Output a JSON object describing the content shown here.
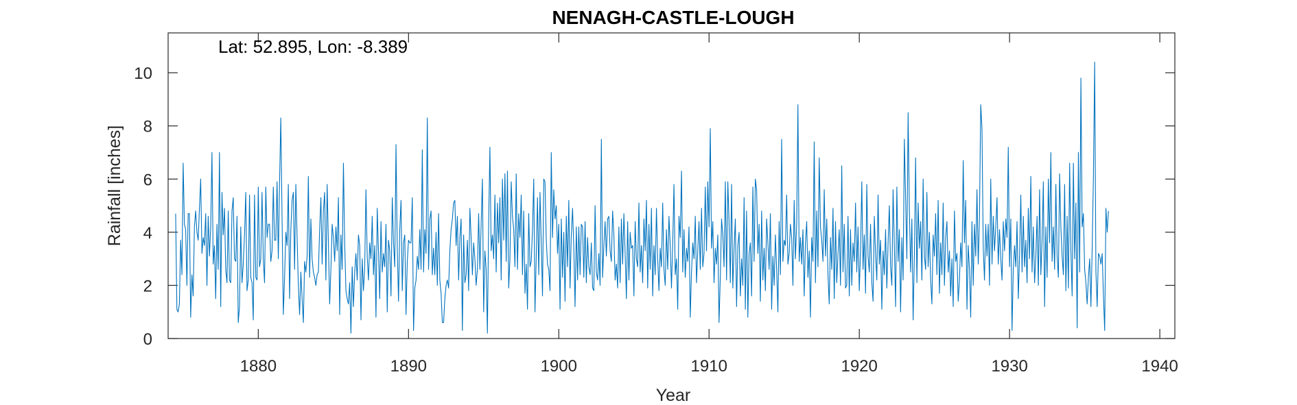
{
  "chart_data": {
    "type": "line",
    "title": "NENAGH-CASTLE-LOUGH",
    "annotation": "Lat: 52.895, Lon: -8.389",
    "xlabel": "Year",
    "ylabel": "Rainfall [inches]",
    "xlim": [
      1874.0,
      1941.0
    ],
    "ylim": [
      0,
      11.5
    ],
    "xticks": [
      1880,
      1890,
      1900,
      1910,
      1920,
      1930,
      1940
    ],
    "yticks": [
      0,
      2,
      4,
      6,
      8,
      10
    ],
    "grid": false,
    "line_color": "#0072BD",
    "series": [
      {
        "x_start": 1874.5,
        "x_step": 0.08333,
        "values": [
          4.7,
          1.1,
          1.0,
          1.3,
          3.7,
          2.4,
          6.6,
          4.3,
          4.1,
          2.0,
          4.7,
          4.7,
          0.8,
          2.4,
          1.6,
          4.2,
          4.8,
          4.0,
          3.7,
          4.9,
          6.0,
          3.2,
          3.8,
          3.5,
          4.7,
          2.0,
          4.6,
          3.1,
          4.2,
          7.0,
          2.8,
          3.5,
          1.5,
          4.3,
          2.6,
          7.0,
          1.2,
          5.5,
          3.9,
          4.9,
          2.6,
          2.1,
          4.8,
          2.2,
          2.1,
          4.8,
          5.3,
          3.0,
          2.9,
          4.6,
          0.6,
          1.2,
          4.2,
          2.1,
          2.8,
          3.9,
          5.5,
          1.8,
          2.2,
          5.4,
          2.3,
          2.1,
          0.7,
          5.4,
          2.3,
          2.2,
          5.7,
          2.7,
          3.0,
          5.5,
          3.0,
          2.1,
          5.7,
          3.8,
          4.3,
          4.3,
          2.9,
          3.3,
          5.7,
          3.7,
          3.7,
          5.9,
          3.0,
          5.9,
          8.3,
          4.5,
          0.9,
          2.3,
          4.0,
          3.5,
          5.8,
          1.5,
          4.1,
          5.2,
          5.5,
          2.6,
          5.8,
          3.8,
          2.0,
          0.9,
          2.5,
          1.5,
          0.6,
          2.9,
          2.5,
          3.1,
          6.1,
          2.3,
          4.5,
          3.0,
          2.5,
          2.3,
          2.0,
          2.4,
          2.5,
          4.1,
          5.3,
          2.8,
          4.8,
          5.5,
          2.2,
          5.8,
          3.6,
          1.3,
          2.6,
          4.3,
          3.8,
          2.9,
          4.2,
          3.3,
          5.3,
          0.9,
          3.9,
          2.6,
          6.6,
          3.6,
          1.8,
          1.5,
          1.3,
          2.1,
          0.2,
          2.7,
          1.2,
          2.5,
          3.2,
          2.2,
          3.9,
          3.5,
          0.7,
          3.0,
          1.8,
          2.7,
          5.6,
          3.1,
          2.2,
          3.6,
          3.0,
          4.6,
          2.4,
          3.5,
          0.8,
          4.9,
          3.3,
          1.5,
          4.4,
          2.5,
          3.2,
          2.7,
          4.3,
          1.0,
          3.7,
          3.3,
          1.6,
          5.3,
          3.6,
          2.7,
          7.3,
          3.4,
          1.4,
          4.1,
          5.2,
          1.8,
          3.6,
          3.9,
          0.9,
          2.9,
          3.7,
          3.6,
          3.6,
          5.3,
          0.3,
          1.9,
          2.2,
          3.1,
          2.6,
          4.1,
          2.6,
          7.1,
          2.5,
          4.1,
          3.2,
          8.3,
          2.6,
          4.5,
          4.8,
          2.4,
          3.4,
          2.4,
          4.0,
          2.0,
          4.7,
          2.2,
          1.7,
          0.6,
          0.6,
          1.5,
          2.0,
          2.2,
          1.9,
          3.3,
          4.1,
          4.5,
          5.1,
          5.2,
          3.5,
          4.6,
          2.2,
          3.8,
          4.5,
          0.3,
          3.9,
          2.1,
          2.4,
          3.7,
          1.8,
          4.9,
          3.8,
          2.4,
          3.6,
          3.0,
          2.0,
          2.6,
          4.7,
          2.6,
          4.3,
          6.0,
          1.0,
          3.3,
          2.6,
          0.2,
          4.4,
          7.2,
          3.3,
          3.9,
          3.0,
          5.4,
          2.5,
          5.1,
          3.6,
          5.3,
          2.2,
          6.0,
          3.7,
          6.2,
          2.9,
          6.3,
          1.9,
          3.0,
          5.9,
          4.6,
          4.1,
          2.7,
          6.2,
          2.6,
          4.7,
          3.8,
          5.4,
          2.4,
          4.8,
          1.7,
          2.8,
          1.1,
          4.7,
          2.7,
          2.9,
          4.1,
          6.0,
          1.0,
          3.1,
          5.3,
          2.4,
          5.5,
          3.6,
          1.6,
          6.0,
          5.9,
          3.7,
          2.8,
          2.6,
          1.8,
          7.0,
          3.8,
          5.6,
          4.5,
          5.0,
          3.2,
          4.3,
          1.1,
          4.5,
          2.3,
          4.0,
          1.4,
          4.6,
          2.7,
          5.2,
          1.9,
          3.9,
          4.9,
          3.4,
          1.2,
          4.2,
          2.2,
          4.2,
          2.4,
          4.3,
          4.2,
          2.3,
          4.4,
          2.1,
          3.8,
          2.7,
          2.4,
          3.6,
          1.9,
          1.8,
          5.0,
          2.5,
          2.2,
          3.2,
          2.0,
          7.5,
          2.3,
          3.5,
          4.4,
          3.1,
          4.5,
          4.6,
          3.3,
          2.9,
          4.8,
          3.9,
          2.2,
          2.8,
          1.9,
          4.2,
          2.1,
          4.5,
          2.8,
          4.7,
          3.2,
          1.5,
          4.4,
          2.2,
          4.0,
          3.4,
          3.5,
          1.6,
          4.4,
          3.0,
          2.7,
          5.1,
          2.5,
          3.5,
          2.1,
          4.5,
          3.3,
          5.2,
          1.9,
          4.3,
          2.6,
          4.9,
          1.6,
          3.5,
          2.4,
          4.9,
          3.0,
          1.8,
          3.4,
          2.7,
          5.1,
          2.6,
          2.0,
          4.1,
          2.6,
          4.6,
          3.5,
          1.9,
          3.6,
          5.8,
          2.4,
          3.0,
          1.1,
          4.6,
          3.8,
          6.3,
          2.5,
          4.1,
          2.3,
          3.4,
          2.9,
          4.2,
          0.8,
          2.5,
          3.6,
          3.0,
          4.6,
          2.1,
          3.3,
          4.4,
          2.6,
          4.9,
          2.7,
          3.2,
          5.7,
          3.3,
          5.9,
          4.2,
          7.9,
          3.4,
          4.4,
          2.1,
          3.4,
          2.8,
          3.9,
          0.6,
          2.3,
          4.5,
          3.9,
          2.7,
          5.9,
          2.2,
          5.9,
          4.4,
          2.1,
          5.8,
          1.9,
          3.4,
          4.5,
          1.2,
          3.5,
          4.0,
          1.6,
          3.0,
          2.0,
          5.3,
          1.1,
          4.8,
          0.8,
          3.2,
          3.6,
          1.6,
          5.7,
          2.9,
          6.0,
          5.6,
          3.2,
          4.3,
          1.4,
          4.8,
          2.2,
          3.4,
          1.8,
          4.5,
          3.6,
          2.6,
          4.7,
          1.1,
          3.1,
          2.0,
          3.9,
          2.6,
          1.0,
          4.4,
          2.4,
          7.5,
          2.9,
          3.7,
          3.5,
          5.4,
          2.8,
          3.2,
          4.3,
          3.8,
          2.0,
          5.2,
          3.0,
          4.3,
          8.8,
          2.9,
          3.8,
          2.8,
          4.1,
          1.6,
          3.6,
          4.4,
          2.3,
          3.3,
          0.8,
          3.8,
          2.9,
          7.4,
          2.1,
          4.8,
          2.7,
          6.8,
          4.2,
          3.7,
          2.9,
          5.6,
          3.1,
          4.5,
          2.4,
          1.3,
          3.8,
          2.6,
          4.9,
          1.5,
          4.4,
          2.1,
          3.2,
          4.1,
          2.0,
          6.5,
          2.5,
          4.3,
          1.9,
          2.0,
          4.6,
          1.6,
          4.1,
          2.0,
          3.6,
          2.9,
          5.1,
          2.5,
          4.2,
          1.8,
          3.3,
          5.9,
          2.6,
          3.9,
          1.7,
          5.8,
          3.1,
          2.5,
          4.3,
          2.1,
          1.4,
          4.6,
          3.2,
          2.2,
          5.4,
          2.8,
          3.7,
          1.1,
          3.3,
          2.4,
          4.1,
          1.9,
          3.6,
          5.0,
          2.7,
          2.0,
          5.6,
          3.5,
          1.2,
          5.7,
          2.9,
          4.1,
          1.0,
          3.8,
          2.2,
          7.5,
          5.3,
          3.0,
          8.5,
          4.9,
          2.5,
          4.5,
          0.7,
          3.1,
          6.8,
          2.1,
          5.1,
          3.4,
          4.4,
          2.2,
          6.0,
          3.1,
          2.6,
          5.5,
          2.7,
          4.0,
          2.2,
          1.3,
          3.9,
          3.1,
          4.7,
          2.4,
          5.2,
          1.7,
          3.6,
          2.4,
          5.1,
          2.0,
          3.8,
          4.4,
          2.5,
          3.3,
          1.6,
          3.0,
          1.2,
          4.8,
          2.9,
          3.2,
          1.4,
          2.2,
          3.6,
          2.7,
          6.7,
          3.6,
          5.2,
          1.1,
          3.5,
          2.6,
          0.8,
          4.4,
          2.0,
          4.3,
          3.1,
          5.6,
          2.8,
          4.6,
          8.8,
          7.9,
          3.4,
          2.2,
          4.3,
          3.1,
          4.3,
          2.0,
          6.0,
          2.8,
          4.6,
          3.3,
          4.2,
          5.3,
          2.8,
          4.1,
          3.0,
          2.2,
          4.4,
          3.3,
          4.5,
          3.8,
          7.2,
          2.7,
          4.5,
          0.3,
          2.6,
          3.5,
          2.7,
          4.4,
          1.5,
          3.1,
          5.4,
          2.5,
          4.6,
          2.7,
          3.7,
          2.1,
          4.9,
          3.0,
          6.1,
          2.5,
          4.2,
          2.1,
          3.1,
          4.6,
          2.0,
          5.6,
          2.4,
          3.7,
          5.9,
          1.2,
          4.2,
          2.3,
          6.0,
          3.6,
          7.0,
          2.9,
          4.2,
          2.6,
          5.8,
          3.1,
          2.3,
          6.2,
          4.2,
          3.1,
          2.4,
          5.8,
          1.8,
          4.6,
          1.9,
          6.6,
          3.3,
          1.6,
          6.6,
          3.0,
          5.1,
          0.4,
          7.0,
          2.5,
          9.8,
          4.2,
          4.7,
          2.6,
          2.1,
          1.3,
          2.3,
          3.0,
          1.2,
          3.4,
          6.1,
          10.4,
          2.5,
          1.2,
          3.2,
          3.1,
          2.8,
          3.2,
          1.6,
          0.3,
          4.9,
          4.0,
          4.8
        ]
      }
    ]
  }
}
